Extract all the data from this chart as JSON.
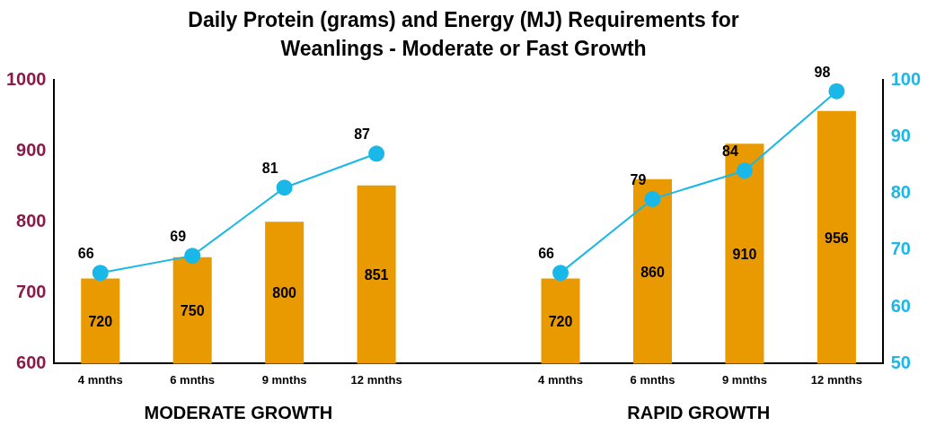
{
  "chart_data": {
    "type": "bar",
    "title": "Daily Protein (grams) and Energy (MJ) Requirements for Weanlings - Moderate or Fast Growth",
    "categories": [
      "4 mnths",
      "6 mnths",
      "9 mnths",
      "12 mnths",
      null,
      "4 mnths",
      "6 mnths",
      "9 mnths",
      "12 mnths"
    ],
    "series": [
      {
        "color": "#e89a00",
        "values": [
          720,
          750,
          800,
          851,
          null,
          720,
          860,
          910,
          956
        ]
      },
      {
        "type": "line",
        "axis": "y2",
        "color": "#1ab8e8",
        "marker": "circle",
        "values": [
          66,
          69,
          81,
          87,
          null,
          66,
          79,
          84,
          98
        ]
      }
    ],
    "ylim": [
      600,
      1000
    ],
    "yticks": [
      600,
      700,
      800,
      900,
      {
        "value": 1000,
        "label": "1000"
      }
    ],
    "y2lim": [
      50,
      100
    ],
    "y2ticks": [
      50,
      60,
      70,
      80,
      90,
      100
    ],
    "grid": false,
    "legend": false,
    "data_labels": true,
    "annotations": [
      "MODERATE GROWTH",
      "RAPID GROWTH"
    ]
  }
}
